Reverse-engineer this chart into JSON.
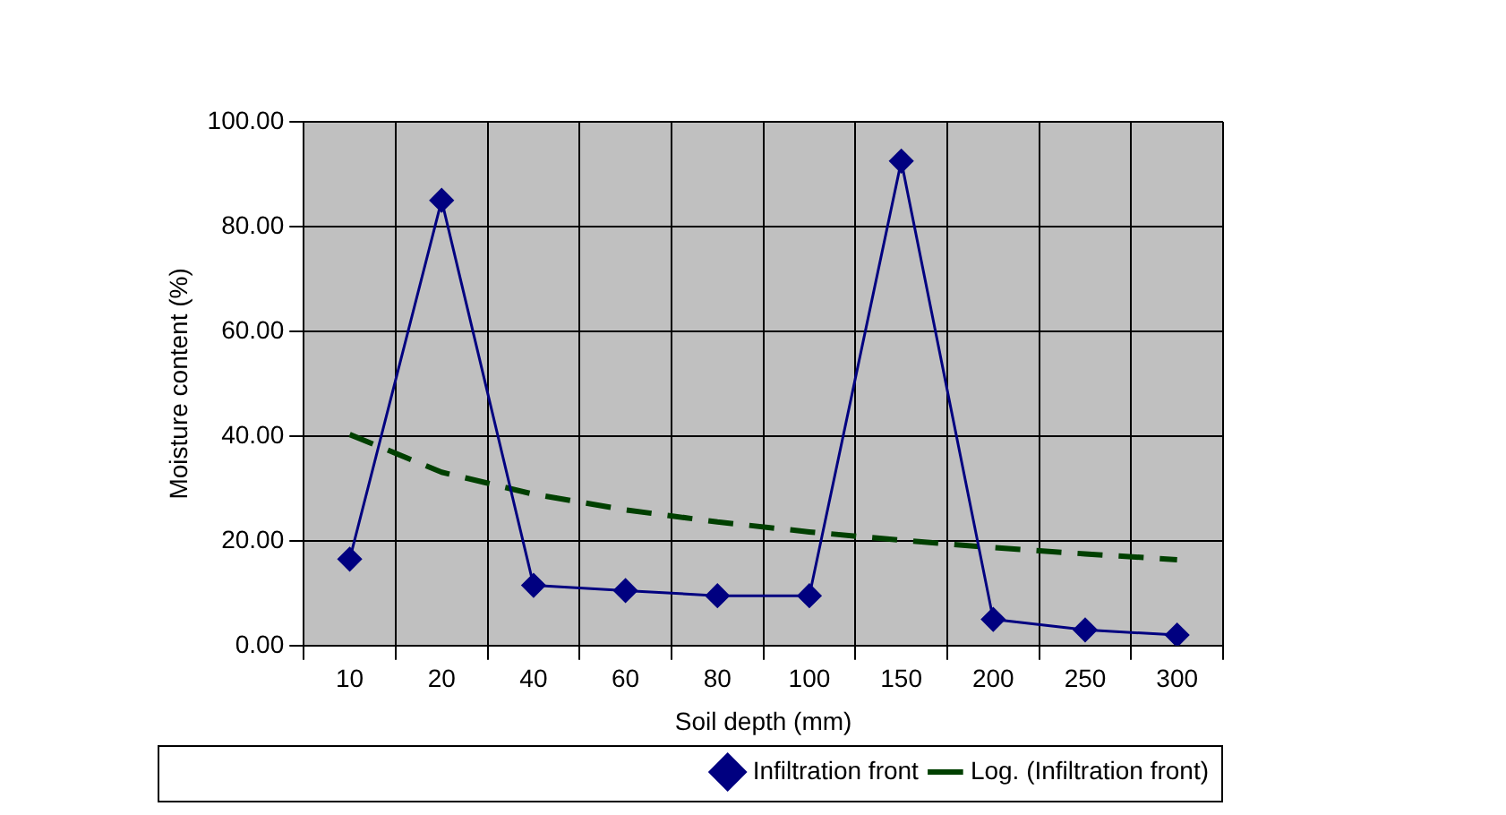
{
  "chart_data": {
    "type": "line",
    "xlabel": "Soil depth (mm)",
    "ylabel": "Moisture content (%)",
    "categories": [
      "10",
      "20",
      "40",
      "60",
      "80",
      "100",
      "150",
      "200",
      "250",
      "300"
    ],
    "series": [
      {
        "name": "Infiltration front",
        "color": "#000080",
        "marker": "diamond",
        "line_style": "solid",
        "values": [
          16.5,
          85,
          11.5,
          10.5,
          9.5,
          9.5,
          92.5,
          5,
          3,
          2
        ]
      },
      {
        "name": "Log. (Infiltration front)",
        "color": "#004000",
        "marker": "none",
        "line_style": "dashed",
        "values": [
          40.3,
          33.1,
          28.9,
          25.9,
          23.6,
          21.7,
          20.1,
          18.7,
          17.5,
          16.4
        ]
      }
    ],
    "ylim": [
      0,
      100
    ],
    "yticks": [
      {
        "value": 0,
        "label": "0.00"
      },
      {
        "value": 20,
        "label": "20.00"
      },
      {
        "value": 40,
        "label": "40.00"
      },
      {
        "value": 60,
        "label": "60.00"
      },
      {
        "value": 80,
        "label": "80.00"
      },
      {
        "value": 100,
        "label": "100.00"
      }
    ],
    "grid": true,
    "legend": "bottom right"
  }
}
